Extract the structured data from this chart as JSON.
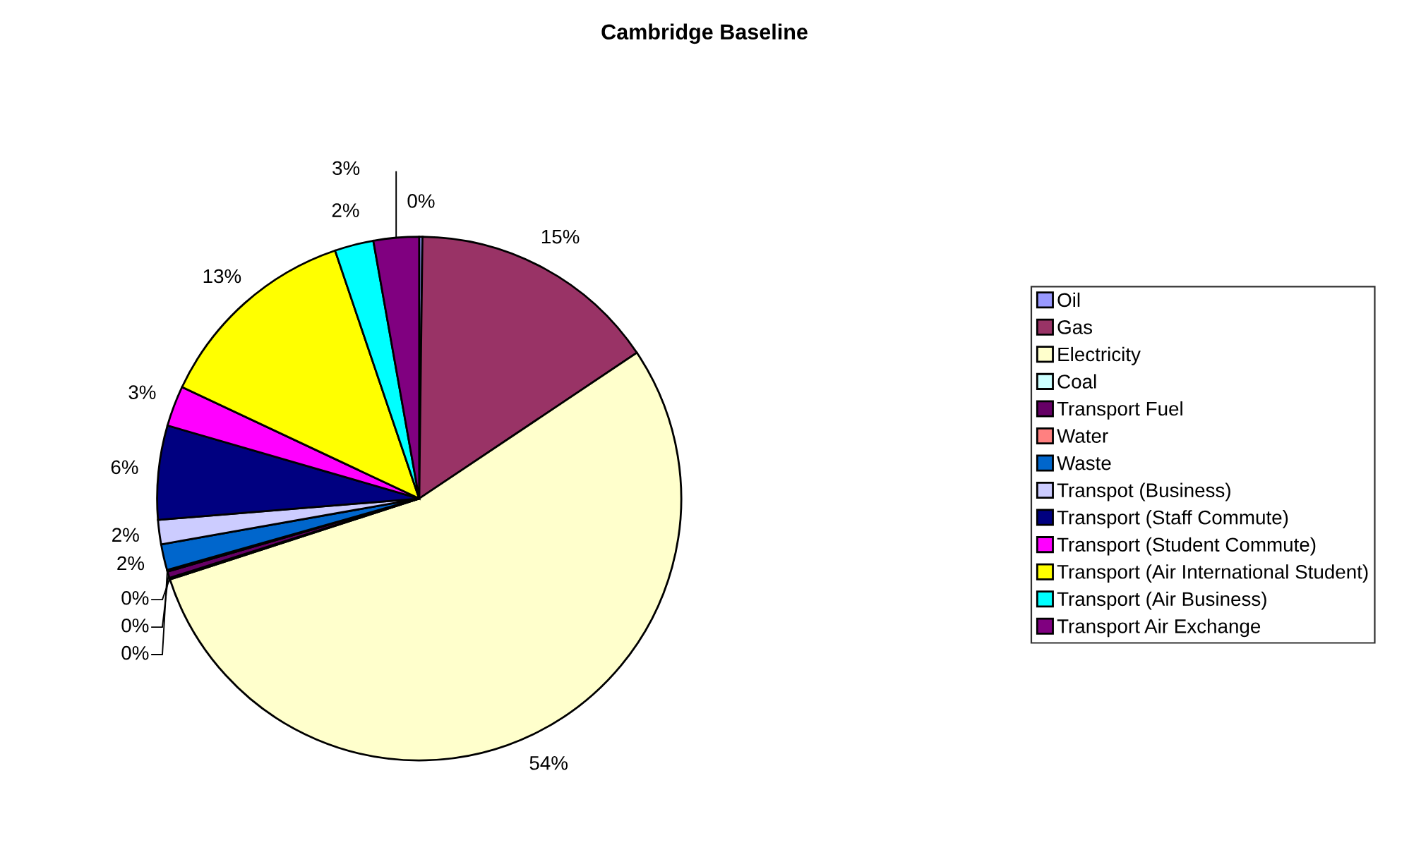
{
  "chart_data": {
    "type": "pie",
    "title": "Cambridge Baseline",
    "categories": [
      "Oil",
      "Gas",
      "Electricity",
      "Coal",
      "Transport Fuel",
      "Water",
      "Waste",
      "Transpot (Business)",
      "Transport (Staff Commute)",
      "Transport (Student Commute)",
      "Transport (Air International Student)",
      "Transport (Air Business)",
      "Transport Air Exchange"
    ],
    "values": [
      0.2,
      15.4,
      54.4,
      0.1,
      0.4,
      0.1,
      1.6,
      1.5,
      5.8,
      2.5,
      12.8,
      2.4,
      2.8
    ],
    "value_labels": [
      "0%",
      "15%",
      "54%",
      "0%",
      "0%",
      "0%",
      "2%",
      "2%",
      "6%",
      "3%",
      "13%",
      "2%",
      "3%"
    ],
    "colors": [
      "#9999ff",
      "#993366",
      "#ffffcc",
      "#ccffff",
      "#660066",
      "#ff8080",
      "#0066cc",
      "#ccccff",
      "#000080",
      "#ff00ff",
      "#ffff00",
      "#00ffff",
      "#800080"
    ],
    "legend": "right"
  }
}
